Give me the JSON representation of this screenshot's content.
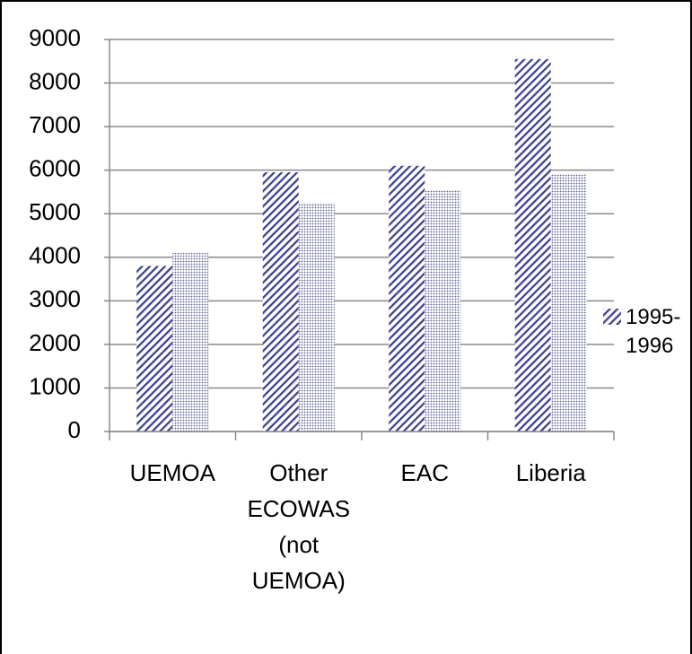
{
  "chart_data": {
    "type": "bar",
    "categories": [
      "UEMOA",
      "Other ECOWAS (not UEMOA)",
      "EAC",
      "Liberia"
    ],
    "series": [
      {
        "name": "1995-1996",
        "color": "#3c3f8f",
        "values": [
          3800,
          5950,
          6100,
          8550
        ]
      },
      {
        "color": "#5a5e9e",
        "values": [
          4100,
          5250,
          5550,
          5900
        ]
      }
    ],
    "ylim": [
      0,
      9000
    ],
    "yticks": [
      0,
      1000,
      2000,
      3000,
      4000,
      5000,
      6000,
      7000,
      8000,
      9000
    ],
    "grid": true,
    "legend": "right"
  }
}
